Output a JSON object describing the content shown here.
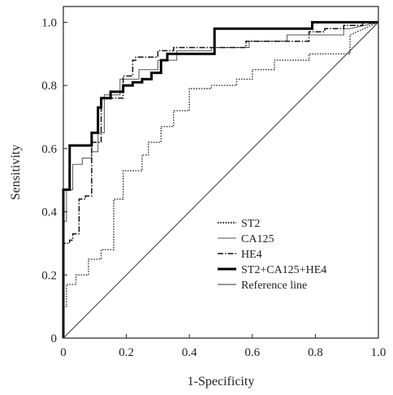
{
  "chart_data": {
    "type": "line",
    "title": "",
    "xlabel": "1-Specificity",
    "ylabel": "Sensitivity",
    "xlim": [
      0,
      1.0
    ],
    "ylim": [
      0,
      1.05
    ],
    "x_ticks": [
      0,
      0.2,
      0.4,
      0.6,
      0.8,
      1.0
    ],
    "x_tick_labels": [
      "0",
      "0.2",
      "0.4",
      "0.6",
      "0.8",
      "1.0"
    ],
    "y_ticks": [
      0,
      0.2,
      0.4,
      0.6,
      0.8,
      1.0
    ],
    "y_tick_labels": [
      "0",
      "0.2",
      "0.4",
      "0.6",
      "0.8",
      "1.0"
    ],
    "grid": false,
    "legend_position": "lower-right",
    "series": [
      {
        "name": "ST2",
        "style": "dotted",
        "color": "#333333",
        "x": [
          0,
          0,
          0.01,
          0.01,
          0.04,
          0.04,
          0.08,
          0.08,
          0.12,
          0.12,
          0.16,
          0.16,
          0.19,
          0.19,
          0.25,
          0.25,
          0.27,
          0.27,
          0.31,
          0.31,
          0.35,
          0.35,
          0.4,
          0.4,
          0.47,
          0.47,
          0.55,
          0.55,
          0.6,
          0.6,
          0.67,
          0.67,
          0.78,
          0.78,
          0.91,
          0.91,
          1.0
        ],
        "y": [
          0,
          0.1,
          0.1,
          0.17,
          0.17,
          0.2,
          0.2,
          0.25,
          0.25,
          0.28,
          0.28,
          0.44,
          0.44,
          0.53,
          0.53,
          0.58,
          0.58,
          0.62,
          0.62,
          0.67,
          0.67,
          0.72,
          0.72,
          0.79,
          0.79,
          0.8,
          0.8,
          0.82,
          0.82,
          0.85,
          0.85,
          0.88,
          0.88,
          0.9,
          0.9,
          0.96,
          1.0
        ]
      },
      {
        "name": "CA125",
        "style": "solid-thin",
        "color": "#555555",
        "x": [
          0,
          0,
          0.01,
          0.01,
          0.03,
          0.03,
          0.06,
          0.06,
          0.09,
          0.09,
          0.11,
          0.11,
          0.13,
          0.13,
          0.18,
          0.18,
          0.24,
          0.24,
          0.3,
          0.3,
          0.36,
          0.36,
          0.47,
          0.47,
          0.59,
          0.59,
          0.71,
          0.71,
          0.84,
          0.84,
          0.89,
          0.89,
          0.91,
          0.91,
          1.0
        ],
        "y": [
          0,
          0.37,
          0.37,
          0.47,
          0.47,
          0.55,
          0.55,
          0.57,
          0.57,
          0.59,
          0.59,
          0.65,
          0.65,
          0.77,
          0.77,
          0.82,
          0.82,
          0.85,
          0.85,
          0.88,
          0.88,
          0.91,
          0.91,
          0.92,
          0.92,
          0.94,
          0.94,
          0.96,
          0.96,
          0.96,
          0.96,
          0.98,
          0.98,
          0.98,
          1.0
        ]
      },
      {
        "name": "HE4",
        "style": "dash-dot",
        "color": "#111111",
        "x": [
          0,
          0,
          0.02,
          0.02,
          0.03,
          0.03,
          0.05,
          0.05,
          0.07,
          0.07,
          0.09,
          0.09,
          0.12,
          0.12,
          0.19,
          0.19,
          0.22,
          0.22,
          0.23,
          0.23,
          0.3,
          0.3,
          0.35,
          0.35,
          0.48,
          0.48,
          0.58,
          0.58,
          0.78,
          0.78,
          0.83,
          0.83,
          0.89,
          0.89,
          0.95,
          0.95,
          1.0
        ],
        "y": [
          0,
          0.3,
          0.3,
          0.31,
          0.31,
          0.33,
          0.33,
          0.44,
          0.44,
          0.45,
          0.45,
          0.62,
          0.62,
          0.76,
          0.76,
          0.83,
          0.83,
          0.88,
          0.88,
          0.89,
          0.89,
          0.91,
          0.91,
          0.92,
          0.92,
          0.92,
          0.92,
          0.94,
          0.94,
          0.97,
          0.97,
          0.98,
          0.98,
          0.99,
          0.99,
          1.0,
          1.0
        ]
      },
      {
        "name": "ST2+CA125+HE4",
        "style": "solid-thick",
        "color": "#000000",
        "x": [
          0,
          0,
          0.02,
          0.02,
          0.09,
          0.09,
          0.11,
          0.11,
          0.12,
          0.12,
          0.15,
          0.15,
          0.19,
          0.19,
          0.22,
          0.22,
          0.25,
          0.25,
          0.28,
          0.28,
          0.31,
          0.31,
          0.33,
          0.33,
          0.48,
          0.48,
          0.79,
          0.79,
          1.0
        ],
        "y": [
          0,
          0.47,
          0.47,
          0.61,
          0.61,
          0.65,
          0.65,
          0.73,
          0.73,
          0.76,
          0.76,
          0.78,
          0.78,
          0.8,
          0.8,
          0.81,
          0.81,
          0.82,
          0.82,
          0.84,
          0.84,
          0.88,
          0.88,
          0.9,
          0.9,
          0.98,
          0.98,
          1.0,
          1.0
        ]
      },
      {
        "name": "Reference line",
        "style": "solid-thin",
        "color": "#333333",
        "x": [
          0,
          1.0
        ],
        "y": [
          0,
          1.0
        ]
      }
    ]
  }
}
